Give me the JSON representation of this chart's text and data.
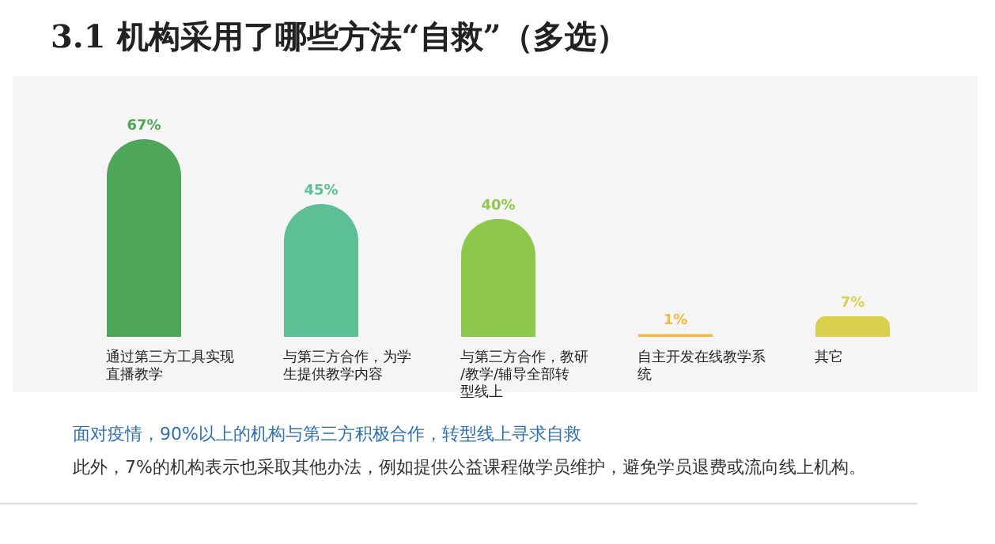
{
  "chart_data": {
    "type": "bar",
    "title": "3.1  机构采用了哪些方法“自救”（多选）",
    "categories": [
      "通过第三方工具实现直播教学",
      "与第三方合作，为学生提供教学内容",
      "与第三方合作，教研/教学/辅导全部转型线上",
      "自主开发在线教学系统",
      "其它"
    ],
    "values": [
      67,
      45,
      40,
      1,
      7
    ],
    "colors": [
      "#4ea65b",
      "#5cbf95",
      "#8dc84c",
      "#f3b83c",
      "#d8cf4c"
    ],
    "value_labels": [
      "67%",
      "45%",
      "40%",
      "1%",
      "7%"
    ],
    "annotations": [
      "面对疫情，90%以上的机构与第三方积极合作，转型线上寻求自救",
      "此外，7%的机构表示也采取其他办法，例如提供公益课程做学员维护，避免学员退费或流向线上机构。"
    ]
  }
}
